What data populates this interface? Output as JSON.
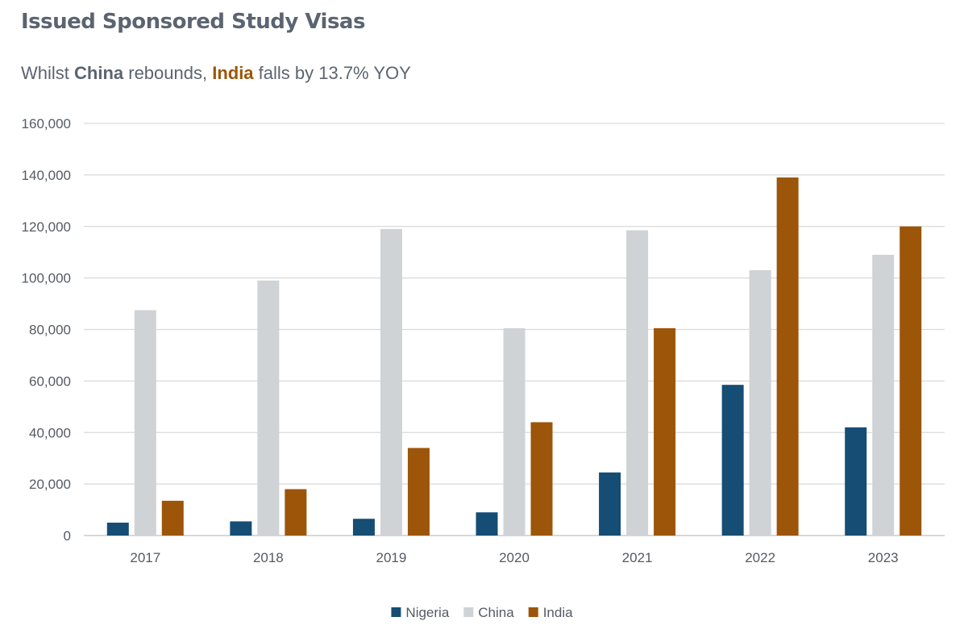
{
  "chart_data": {
    "type": "bar",
    "title": "Issued Sponsored Study Visas",
    "subtitle": {
      "prefix": "Whilst ",
      "highlight1": "China",
      "middle": " rebounds, ",
      "highlight2": "India",
      "suffix": " falls by 13.7% YOY"
    },
    "categories": [
      "2017",
      "2018",
      "2019",
      "2020",
      "2021",
      "2022",
      "2023"
    ],
    "series": [
      {
        "name": "Nigeria",
        "color": "#154d74",
        "values": [
          5000,
          5500,
          6500,
          9000,
          24500,
          58500,
          42000
        ]
      },
      {
        "name": "China",
        "color": "#d0d3d6",
        "values": [
          87500,
          99000,
          119000,
          80500,
          118500,
          103000,
          109000
        ]
      },
      {
        "name": "India",
        "color": "#9c5509",
        "values": [
          13500,
          18000,
          34000,
          44000,
          80500,
          139000,
          120000
        ]
      }
    ],
    "ylim": [
      0,
      160000
    ],
    "yticks": [
      "0",
      "20,000",
      "40,000",
      "60,000",
      "80,000",
      "100,000",
      "120,000",
      "140,000",
      "160,000"
    ],
    "xlabel": "",
    "ylabel": "",
    "grid": true,
    "legend_position": "bottom-center",
    "colors": {
      "text": "#5b6470",
      "china_highlight": "#5b6470",
      "india_highlight": "#9c5509",
      "grid": "#d9d9d9"
    }
  }
}
